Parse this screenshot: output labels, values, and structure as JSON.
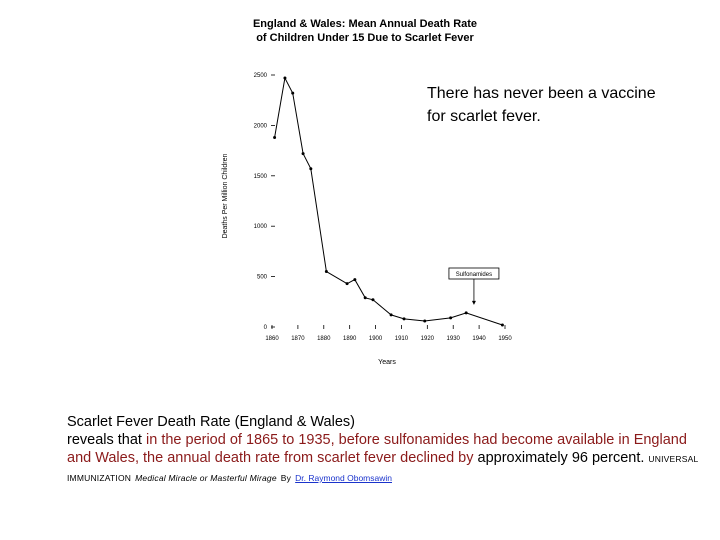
{
  "chart_data": {
    "type": "line",
    "title": [
      "England & Wales: Mean Annual Death Rate",
      "of Children Under 15 Due to Scarlet Fever"
    ],
    "xlabel": "Years",
    "ylabel": "Deaths Per Million Children",
    "xlim": [
      1860,
      1950
    ],
    "ylim": [
      0,
      2500
    ],
    "xticks": [
      1860,
      1870,
      1880,
      1890,
      1900,
      1910,
      1920,
      1930,
      1940,
      1950
    ],
    "yticks": [
      0,
      500,
      1000,
      1500,
      2000,
      2500
    ],
    "x": [
      1861,
      1865,
      1868,
      1872,
      1875,
      1881,
      1889,
      1892,
      1896,
      1899,
      1906,
      1911,
      1919,
      1929,
      1935,
      1949
    ],
    "y": [
      1880,
      2470,
      2320,
      1720,
      1570,
      550,
      430,
      470,
      290,
      270,
      120,
      80,
      60,
      90,
      140,
      20
    ],
    "annotations": [
      {
        "text": "Sulfonamides",
        "x": 1938,
        "y": 190
      }
    ],
    "grid": false,
    "color": "#000000"
  },
  "callout": {
    "line1": "There has never been a vaccine",
    "line2": "for scarlet fever."
  },
  "caption": {
    "title": "Scarlet Fever Death Rate (England & Wales)",
    "part1": "reveals that ",
    "part2": "in the period of 1865 to 1935, before sulfonamides had become available in England and Wales, the annual death rate from scarlet fever declined by",
    "part3": "approximately 96 percent.",
    "source_caps": "UNIVERSAL IMMUNIZATION",
    "source_italic": "Medical Miracle or Masterful Mirage",
    "source_by": "By",
    "author_link": "Dr. Raymond Obomsawin"
  },
  "colors": {
    "accent_text": "#8b1a1a",
    "link": "#1a33cc"
  }
}
